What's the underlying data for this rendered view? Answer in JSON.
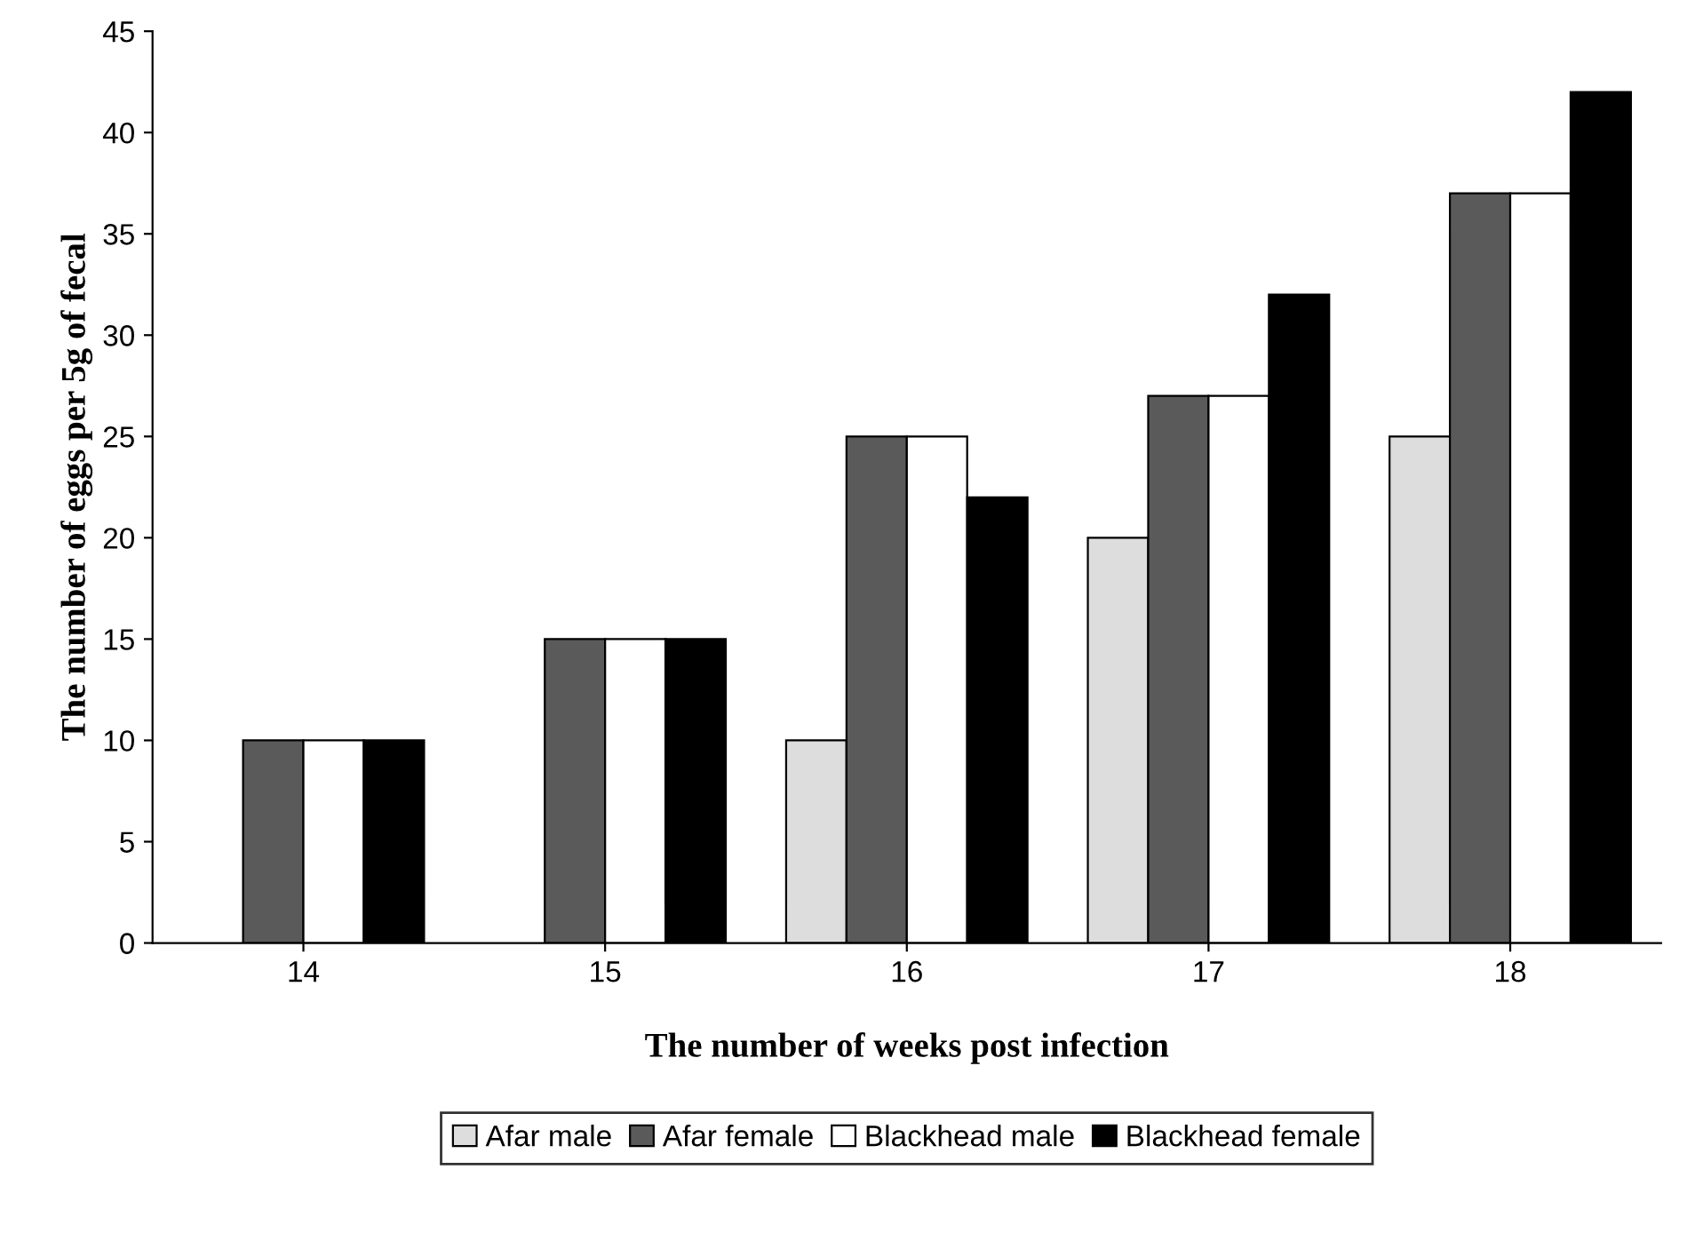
{
  "chart_data": {
    "type": "bar",
    "xlabel": "The number of weeks post infection",
    "ylabel": "The number of eggs per 5g of fecal",
    "categories": [
      "14",
      "15",
      "16",
      "17",
      "18"
    ],
    "series": [
      {
        "name": "Afar male",
        "color": "#dddddd",
        "values": [
          null,
          null,
          10,
          20,
          25
        ]
      },
      {
        "name": "Afar female",
        "color": "#5a5a5a",
        "values": [
          10,
          15,
          25,
          27,
          37
        ]
      },
      {
        "name": "Blackhead male",
        "color": "#ffffff",
        "values": [
          10,
          15,
          25,
          27,
          37
        ]
      },
      {
        "name": "Blackhead female",
        "color": "#000000",
        "values": [
          10,
          15,
          22,
          32,
          42
        ]
      }
    ],
    "ylim": [
      0,
      45
    ],
    "yticks": [
      0,
      5,
      10,
      15,
      20,
      25,
      30,
      35,
      40,
      45
    ],
    "grid": false,
    "legend": "bottom"
  }
}
